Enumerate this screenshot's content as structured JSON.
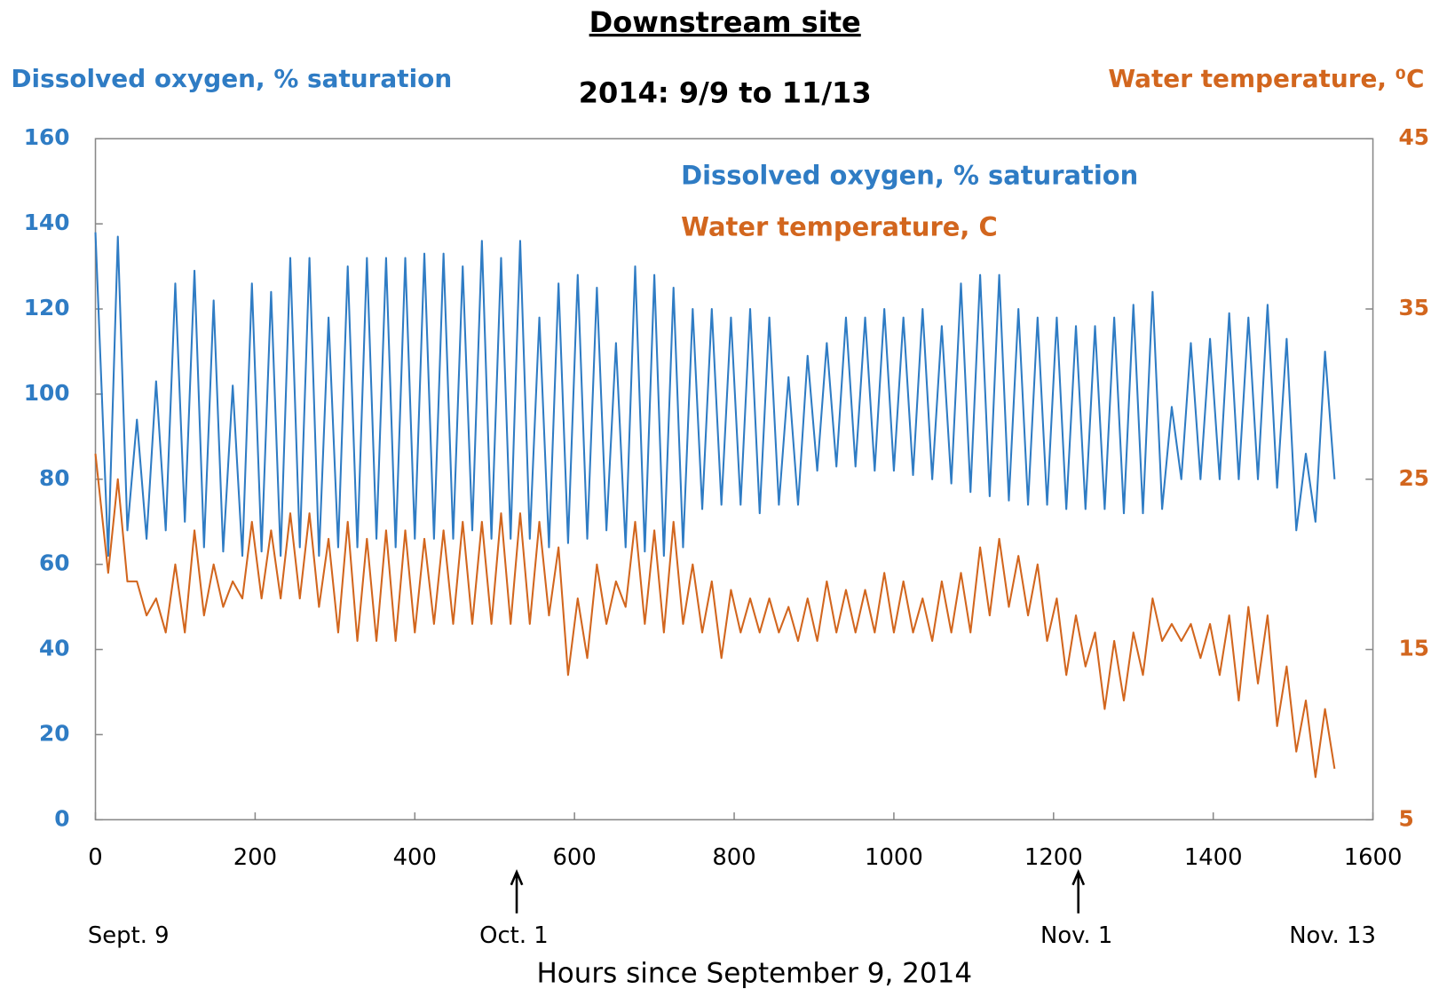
{
  "chart_data": {
    "type": "line",
    "title": "Downstream site",
    "subtitle": "2014: 9/9 to 11/13",
    "xlabel": "Hours since September 9, 2014",
    "ylabel": "Dissolved oxygen, % saturation",
    "y2label": "Water temperature, ⁰C",
    "annotations": [
      "Sept. 9",
      "Oct. 1",
      "Nov. 1",
      "Nov. 13"
    ],
    "xlim": [
      0,
      1600
    ],
    "xticks": [
      0,
      200,
      400,
      600,
      800,
      1000,
      1200,
      1400,
      1600
    ],
    "ylim": [
      0,
      160
    ],
    "yticks": [
      0,
      20,
      40,
      60,
      80,
      100,
      120,
      140,
      160
    ],
    "y2lim": [
      5,
      45
    ],
    "y2ticks": [
      5,
      15,
      25,
      35,
      45
    ],
    "grid": false,
    "x": [
      0,
      16,
      28,
      40,
      52,
      64,
      76,
      88,
      100,
      112,
      124,
      136,
      148,
      160,
      172,
      184,
      196,
      208,
      220,
      232,
      244,
      256,
      268,
      280,
      292,
      304,
      316,
      328,
      340,
      352,
      364,
      376,
      388,
      400,
      412,
      424,
      436,
      448,
      460,
      472,
      484,
      496,
      508,
      520,
      532,
      544,
      556,
      568,
      580,
      592,
      604,
      616,
      628,
      640,
      652,
      664,
      676,
      688,
      700,
      712,
      724,
      736,
      748,
      760,
      772,
      784,
      796,
      808,
      820,
      832,
      844,
      856,
      868,
      880,
      892,
      904,
      916,
      928,
      940,
      952,
      964,
      976,
      988,
      1000,
      1012,
      1024,
      1036,
      1048,
      1060,
      1072,
      1084,
      1096,
      1108,
      1120,
      1132,
      1144,
      1156,
      1168,
      1180,
      1192,
      1204,
      1216,
      1228,
      1240,
      1252,
      1264,
      1276,
      1288,
      1300,
      1312,
      1324,
      1336,
      1348,
      1360,
      1372,
      1384,
      1396,
      1408,
      1420,
      1432,
      1444,
      1456,
      1468,
      1480,
      1492,
      1504,
      1516,
      1528,
      1540,
      1552
    ],
    "series": [
      {
        "name": "Dissolved oxygen, % saturation",
        "color": "#2f7cc4",
        "values": [
          138,
          62,
          137,
          68,
          94,
          66,
          103,
          68,
          126,
          70,
          129,
          64,
          122,
          63,
          102,
          62,
          126,
          63,
          124,
          62,
          132,
          64,
          132,
          62,
          118,
          64,
          130,
          64,
          132,
          66,
          132,
          64,
          132,
          66,
          133,
          66,
          133,
          66,
          130,
          68,
          136,
          66,
          132,
          66,
          136,
          66,
          118,
          64,
          126,
          65,
          128,
          66,
          125,
          68,
          112,
          64,
          130,
          63,
          128,
          62,
          125,
          64,
          120,
          73,
          120,
          74,
          118,
          74,
          120,
          72,
          118,
          74,
          104,
          74,
          109,
          82,
          112,
          83,
          118,
          83,
          118,
          82,
          120,
          82,
          118,
          81,
          120,
          80,
          116,
          79,
          126,
          77,
          128,
          76,
          128,
          75,
          120,
          74,
          118,
          74,
          118,
          73,
          116,
          73,
          116,
          73,
          118,
          72,
          121,
          72,
          124,
          73,
          97,
          80,
          112,
          80,
          113,
          80,
          119,
          80,
          118,
          80,
          121,
          78,
          113,
          68,
          86,
          70,
          110,
          80
        ]
      },
      {
        "name": "Water temperature, C",
        "color": "#d2661e",
        "axis": "y2",
        "values": [
          26.5,
          19.5,
          25,
          19,
          19,
          17,
          18,
          16,
          20,
          16,
          22,
          17,
          20,
          17.5,
          19,
          18,
          22.5,
          18,
          22,
          18,
          23,
          18,
          23,
          17.5,
          21.5,
          16,
          22.5,
          15.5,
          21.5,
          15.5,
          22,
          15.5,
          22,
          16,
          21.5,
          16.5,
          22,
          16.5,
          22.5,
          16.5,
          22.5,
          16.5,
          23,
          16.5,
          23,
          16.5,
          22.5,
          17,
          21,
          13.5,
          18,
          14.5,
          20,
          16.5,
          19,
          17.5,
          22.5,
          16.5,
          22,
          16,
          22.5,
          16.5,
          20,
          16,
          19,
          14.5,
          18.5,
          16,
          18,
          16,
          18,
          16,
          17.5,
          15.5,
          18,
          15.5,
          19,
          16,
          18.5,
          16,
          18.5,
          16,
          19.5,
          16,
          19,
          16,
          18,
          15.5,
          19,
          16,
          19.5,
          16,
          21,
          17,
          21.5,
          17.5,
          20.5,
          17,
          20,
          15.5,
          18,
          13.5,
          17,
          14,
          16,
          11.5,
          15.5,
          12,
          16,
          13.5,
          18,
          15.5,
          16.5,
          15.5,
          16.5,
          14.5,
          16.5,
          13.5,
          17,
          12,
          17.5,
          13,
          17,
          10.5,
          14,
          9,
          12,
          7.5,
          11.5,
          8
        ]
      }
    ]
  }
}
